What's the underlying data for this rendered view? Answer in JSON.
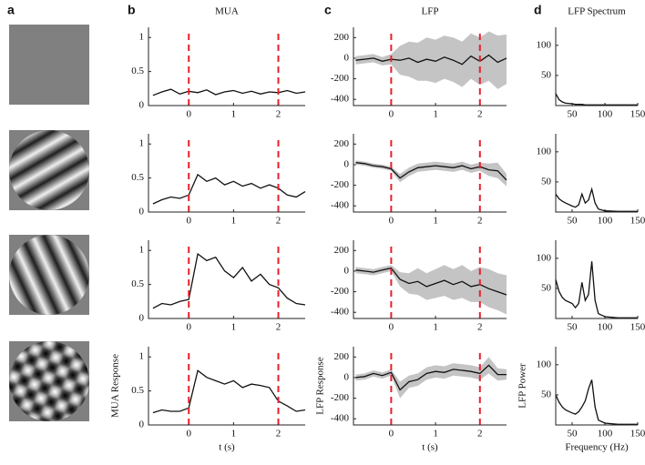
{
  "panel_labels": [
    "a",
    "b",
    "c",
    "d"
  ],
  "chart_data": [
    {
      "type": "line",
      "title": "MUA",
      "x": [
        -0.8,
        -0.6,
        -0.4,
        -0.2,
        0,
        0.2,
        0.4,
        0.6,
        0.8,
        1,
        1.2,
        1.4,
        1.6,
        1.8,
        2,
        2.2,
        2.4,
        2.6
      ],
      "series": [
        {
          "color": "#111111",
          "values": [
            0.15,
            0.2,
            0.24,
            0.17,
            0.21,
            0.19,
            0.23,
            0.16,
            0.2,
            0.22,
            0.18,
            0.21,
            0.17,
            0.2,
            0.19,
            0.22,
            0.18,
            0.2
          ]
        }
      ],
      "xlim": [
        -0.9,
        2.6
      ],
      "ylim": [
        0,
        1.15
      ],
      "xticks": [
        0,
        1,
        2
      ],
      "yticks": [
        0,
        0.5,
        1
      ],
      "vlines": [
        0,
        2
      ],
      "vline_color": "#e8202a"
    },
    {
      "type": "band",
      "title": "LFP",
      "x": [
        -0.8,
        -0.6,
        -0.4,
        -0.2,
        0,
        0.2,
        0.4,
        0.6,
        0.8,
        1,
        1.2,
        1.4,
        1.6,
        1.8,
        2,
        2.2,
        2.4,
        2.6
      ],
      "series": [
        {
          "color": "#111111",
          "band_color": "#c4c4c4",
          "values": [
            -20,
            -10,
            0,
            -30,
            -10,
            -20,
            0,
            -40,
            -10,
            -30,
            10,
            -20,
            -60,
            20,
            -30,
            30,
            -40,
            0
          ],
          "lower": [
            -60,
            -50,
            -40,
            -70,
            -60,
            -160,
            -180,
            -220,
            -220,
            -240,
            -200,
            -230,
            -280,
            -200,
            -260,
            -220,
            -300,
            -250
          ],
          "upper": [
            20,
            30,
            40,
            10,
            40,
            120,
            160,
            150,
            200,
            180,
            220,
            200,
            160,
            240,
            200,
            260,
            220,
            230
          ]
        }
      ],
      "xlim": [
        -0.85,
        2.6
      ],
      "ylim": [
        -460,
        300
      ],
      "xticks": [
        0,
        1,
        2
      ],
      "yticks": [
        200,
        0,
        -200,
        -400
      ],
      "vlines": [
        0,
        2
      ],
      "vline_color": "#e8202a"
    },
    {
      "type": "line",
      "title": "LFP Spectrum",
      "x": [
        25,
        30,
        35,
        40,
        50,
        55,
        60,
        65,
        70,
        75,
        80,
        85,
        90,
        100,
        120,
        150
      ],
      "series": [
        {
          "color": "#111111",
          "values": [
            20,
            10,
            6,
            4,
            3,
            2,
            2,
            2,
            1,
            1,
            1,
            1,
            1,
            1,
            1,
            1
          ]
        }
      ],
      "xlim": [
        25,
        150
      ],
      "ylim": [
        0,
        130
      ],
      "xticks": [
        50,
        100,
        150
      ],
      "yticks": [
        50,
        100
      ]
    },
    {
      "type": "line",
      "x": [
        -0.8,
        -0.6,
        -0.4,
        -0.2,
        0,
        0.2,
        0.4,
        0.6,
        0.8,
        1,
        1.2,
        1.4,
        1.6,
        1.8,
        2,
        2.2,
        2.4,
        2.6
      ],
      "series": [
        {
          "color": "#111111",
          "values": [
            0.12,
            0.18,
            0.22,
            0.2,
            0.25,
            0.55,
            0.45,
            0.5,
            0.4,
            0.45,
            0.38,
            0.42,
            0.35,
            0.4,
            0.35,
            0.25,
            0.22,
            0.3
          ]
        }
      ],
      "xlim": [
        -0.9,
        2.6
      ],
      "ylim": [
        0,
        1.15
      ],
      "xticks": [
        0,
        1,
        2
      ],
      "yticks": [
        0,
        0.5,
        1
      ],
      "vlines": [
        0,
        2
      ],
      "vline_color": "#e8202a"
    },
    {
      "type": "band",
      "x": [
        -0.8,
        -0.6,
        -0.4,
        -0.2,
        0,
        0.2,
        0.4,
        0.6,
        0.8,
        1,
        1.2,
        1.4,
        1.6,
        1.8,
        2,
        2.2,
        2.4,
        2.6
      ],
      "series": [
        {
          "color": "#111111",
          "band_color": "#c4c4c4",
          "values": [
            20,
            10,
            -10,
            -20,
            -40,
            -130,
            -70,
            -30,
            -20,
            -10,
            -20,
            -30,
            -10,
            -40,
            -20,
            -50,
            -60,
            -150
          ],
          "lower": [
            0,
            -10,
            -30,
            -40,
            -60,
            -170,
            -110,
            -70,
            -60,
            -50,
            -60,
            -70,
            -50,
            -80,
            -60,
            -110,
            -130,
            -210
          ],
          "upper": [
            40,
            30,
            10,
            0,
            -20,
            -90,
            -30,
            10,
            20,
            30,
            20,
            10,
            30,
            0,
            20,
            10,
            20,
            -90
          ]
        }
      ],
      "xlim": [
        -0.85,
        2.6
      ],
      "ylim": [
        -460,
        300
      ],
      "xticks": [
        0,
        1,
        2
      ],
      "yticks": [
        200,
        0,
        -200,
        -400
      ],
      "vlines": [
        0,
        2
      ],
      "vline_color": "#e8202a"
    },
    {
      "type": "line",
      "x": [
        25,
        30,
        35,
        40,
        50,
        55,
        60,
        65,
        70,
        75,
        80,
        85,
        90,
        100,
        120,
        150
      ],
      "series": [
        {
          "color": "#111111",
          "values": [
            30,
            22,
            18,
            15,
            10,
            8,
            12,
            30,
            15,
            20,
            38,
            15,
            5,
            2,
            1,
            1
          ]
        }
      ],
      "xlim": [
        25,
        150
      ],
      "ylim": [
        0,
        130
      ],
      "xticks": [
        50,
        100,
        150
      ],
      "yticks": [
        50,
        100
      ]
    },
    {
      "type": "line",
      "x": [
        -0.8,
        -0.6,
        -0.4,
        -0.2,
        0,
        0.2,
        0.4,
        0.6,
        0.8,
        1,
        1.2,
        1.4,
        1.6,
        1.8,
        2,
        2.2,
        2.4,
        2.6
      ],
      "series": [
        {
          "color": "#111111",
          "values": [
            0.15,
            0.22,
            0.2,
            0.25,
            0.28,
            0.95,
            0.85,
            0.9,
            0.7,
            0.6,
            0.75,
            0.55,
            0.65,
            0.5,
            0.45,
            0.3,
            0.22,
            0.2
          ]
        }
      ],
      "xlim": [
        -0.9,
        2.6
      ],
      "ylim": [
        0,
        1.15
      ],
      "xticks": [
        0,
        1,
        2
      ],
      "yticks": [
        0,
        0.5,
        1
      ],
      "vlines": [
        0,
        2
      ],
      "vline_color": "#e8202a"
    },
    {
      "type": "band",
      "x": [
        -0.8,
        -0.6,
        -0.4,
        -0.2,
        0,
        0.2,
        0.4,
        0.6,
        0.8,
        1,
        1.2,
        1.4,
        1.6,
        1.8,
        2,
        2.2,
        2.4,
        2.6
      ],
      "series": [
        {
          "color": "#111111",
          "band_color": "#c4c4c4",
          "values": [
            10,
            0,
            -10,
            10,
            30,
            -80,
            -120,
            -100,
            -150,
            -120,
            -90,
            -130,
            -100,
            -150,
            -130,
            -170,
            -200,
            -230
          ],
          "lower": [
            -20,
            -30,
            -40,
            -20,
            0,
            -150,
            -220,
            -230,
            -280,
            -260,
            -240,
            -280,
            -260,
            -300,
            -300,
            -350,
            -380,
            -420
          ],
          "upper": [
            40,
            30,
            20,
            40,
            60,
            -10,
            -20,
            30,
            -20,
            20,
            60,
            20,
            60,
            0,
            40,
            20,
            -20,
            -40
          ]
        }
      ],
      "xlim": [
        -0.85,
        2.6
      ],
      "ylim": [
        -460,
        300
      ],
      "xticks": [
        0,
        1,
        2
      ],
      "yticks": [
        200,
        0,
        -200,
        -400
      ],
      "vlines": [
        0,
        2
      ],
      "vline_color": "#e8202a"
    },
    {
      "type": "line",
      "x": [
        25,
        30,
        35,
        40,
        50,
        55,
        60,
        65,
        70,
        75,
        80,
        85,
        90,
        100,
        120,
        150
      ],
      "series": [
        {
          "color": "#111111",
          "values": [
            65,
            45,
            35,
            30,
            25,
            18,
            25,
            60,
            30,
            40,
            95,
            30,
            8,
            3,
            1,
            1
          ]
        }
      ],
      "xlim": [
        25,
        150
      ],
      "ylim": [
        0,
        130
      ],
      "xticks": [
        50,
        100,
        150
      ],
      "yticks": [
        50,
        100
      ]
    },
    {
      "type": "line",
      "xlabel": "t (s)",
      "ylabel": "MUA Response",
      "x": [
        -0.8,
        -0.6,
        -0.4,
        -0.2,
        0,
        0.2,
        0.4,
        0.6,
        0.8,
        1,
        1.2,
        1.4,
        1.6,
        1.8,
        2,
        2.2,
        2.4,
        2.6
      ],
      "series": [
        {
          "color": "#111111",
          "values": [
            0.18,
            0.22,
            0.2,
            0.2,
            0.25,
            0.8,
            0.7,
            0.65,
            0.6,
            0.65,
            0.55,
            0.6,
            0.58,
            0.55,
            0.35,
            0.28,
            0.2,
            0.22
          ]
        }
      ],
      "xlim": [
        -0.9,
        2.6
      ],
      "ylim": [
        0,
        1.15
      ],
      "xticks": [
        0,
        1,
        2
      ],
      "yticks": [
        0,
        0.5,
        1
      ],
      "vlines": [
        0,
        2
      ],
      "vline_color": "#e8202a"
    },
    {
      "type": "band",
      "xlabel": "t (s)",
      "ylabel": "LFP Response",
      "x": [
        -0.8,
        -0.6,
        -0.4,
        -0.2,
        0,
        0.2,
        0.4,
        0.6,
        0.8,
        1,
        1.2,
        1.4,
        1.6,
        1.8,
        2,
        2.2,
        2.4,
        2.6
      ],
      "series": [
        {
          "color": "#111111",
          "band_color": "#c4c4c4",
          "values": [
            0,
            10,
            40,
            20,
            50,
            -120,
            -40,
            -20,
            40,
            60,
            50,
            80,
            70,
            60,
            40,
            120,
            30,
            30
          ],
          "lower": [
            -30,
            -20,
            10,
            -10,
            20,
            -200,
            -100,
            -80,
            -20,
            0,
            -10,
            20,
            10,
            0,
            -20,
            40,
            -30,
            -20
          ],
          "upper": [
            30,
            40,
            70,
            50,
            80,
            -40,
            20,
            40,
            100,
            120,
            110,
            140,
            130,
            120,
            100,
            200,
            90,
            80
          ]
        }
      ],
      "xlim": [
        -0.85,
        2.6
      ],
      "ylim": [
        -460,
        300
      ],
      "xticks": [
        0,
        1,
        2
      ],
      "yticks": [
        200,
        0,
        -200,
        -400
      ],
      "vlines": [
        0,
        2
      ],
      "vline_color": "#e8202a"
    },
    {
      "type": "line",
      "xlabel": "Frequency (Hz)",
      "ylabel": "LFP Power",
      "x": [
        25,
        30,
        35,
        40,
        50,
        55,
        60,
        65,
        70,
        75,
        80,
        85,
        90,
        100,
        120,
        150
      ],
      "series": [
        {
          "color": "#111111",
          "values": [
            50,
            38,
            30,
            25,
            20,
            18,
            22,
            30,
            40,
            60,
            75,
            30,
            8,
            3,
            1,
            1
          ]
        }
      ],
      "xlim": [
        25,
        150
      ],
      "ylim": [
        0,
        130
      ],
      "xticks": [
        50,
        100,
        150
      ],
      "yticks": [
        50,
        100
      ]
    }
  ]
}
